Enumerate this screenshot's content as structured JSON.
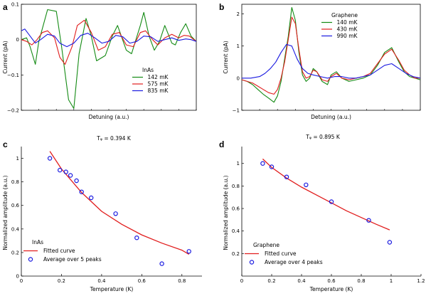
{
  "panel_labels": [
    "a",
    "b",
    "c",
    "d"
  ],
  "chart_data": [
    {
      "type": "line",
      "panel": "a",
      "xlabel": "Detuning (a.u.)",
      "ylabel": "Current (pA)",
      "legend_title": "InAs",
      "xlim": [
        0,
        1
      ],
      "ylim": [
        -0.2,
        0.1
      ],
      "yticks": [
        -0.2,
        -0.1,
        0,
        0.1
      ],
      "yticklabels": [
        "−0.2",
        "−0.1",
        "0",
        "0.1"
      ],
      "grid": false,
      "legend_position": "lower-right",
      "series": [
        {
          "name": "142 mK",
          "color": "#138a13",
          "x": [
            0,
            0.03,
            0.05,
            0.08,
            0.1,
            0.15,
            0.2,
            0.23,
            0.27,
            0.3,
            0.33,
            0.37,
            0.4,
            0.43,
            0.48,
            0.52,
            0.55,
            0.6,
            0.63,
            0.68,
            0.7,
            0.73,
            0.76,
            0.79,
            0.82,
            0.86,
            0.88,
            0.91,
            0.94,
            0.97,
            1.0
          ],
          "y": [
            0,
            0.005,
            -0.02,
            -0.07,
            -0.005,
            0.085,
            0.08,
            -0.02,
            -0.17,
            -0.195,
            -0.04,
            0.06,
            0.01,
            -0.06,
            -0.045,
            0.01,
            0.04,
            -0.03,
            -0.04,
            0.04,
            0.077,
            0.01,
            -0.03,
            -0.005,
            0.04,
            -0.01,
            -0.015,
            0.02,
            0.045,
            0.01,
            -0.005
          ]
        },
        {
          "name": "575 mK",
          "color": "#e11d1d",
          "x": [
            0,
            0.03,
            0.06,
            0.09,
            0.12,
            0.15,
            0.19,
            0.22,
            0.25,
            0.29,
            0.32,
            0.36,
            0.4,
            0.44,
            0.48,
            0.52,
            0.56,
            0.6,
            0.64,
            0.68,
            0.71,
            0.75,
            0.78,
            0.82,
            0.86,
            0.9,
            0.93,
            0.96,
            1.0
          ],
          "y": [
            0,
            -0.005,
            -0.015,
            0,
            0.02,
            0.025,
            0.005,
            -0.05,
            -0.07,
            -0.02,
            0.04,
            0.055,
            0.02,
            -0.03,
            -0.02,
            0.015,
            0.02,
            -0.015,
            -0.02,
            0.02,
            0.025,
            0,
            -0.015,
            0.005,
            0.015,
            0.005,
            0.012,
            0.01,
            -0.005
          ]
        },
        {
          "name": "835 mK",
          "color": "#1a1ae0",
          "x": [
            0,
            0.02,
            0.05,
            0.08,
            0.11,
            0.15,
            0.19,
            0.22,
            0.26,
            0.3,
            0.34,
            0.38,
            0.42,
            0.46,
            0.5,
            0.54,
            0.58,
            0.62,
            0.66,
            0.7,
            0.74,
            0.78,
            0.82,
            0.86,
            0.9,
            0.94,
            0.97,
            1.0
          ],
          "y": [
            0.025,
            0.03,
            0.01,
            -0.01,
            0,
            0.015,
            0.01,
            -0.01,
            -0.02,
            -0.01,
            0.012,
            0.018,
            0.005,
            -0.01,
            -0.005,
            0.012,
            0.008,
            -0.01,
            -0.005,
            0.01,
            0.008,
            -0.005,
            0,
            0.005,
            -0.002,
            0.002,
            0,
            -0.005
          ]
        }
      ]
    },
    {
      "type": "line",
      "panel": "b",
      "xlabel": "Detuning (a.u.)",
      "ylabel": "Current (pA)",
      "legend_title": "Graphene",
      "xlim": [
        0,
        1
      ],
      "ylim": [
        -1,
        2.3
      ],
      "yticks": [
        -1,
        0,
        1,
        2
      ],
      "yticklabels": [
        "−1",
        "0",
        "1",
        "2"
      ],
      "grid": false,
      "legend_position": "upper-right",
      "series": [
        {
          "name": "140 mK",
          "color": "#138a13",
          "x": [
            0,
            0.03,
            0.06,
            0.09,
            0.12,
            0.15,
            0.18,
            0.2,
            0.22,
            0.24,
            0.26,
            0.28,
            0.3,
            0.32,
            0.34,
            0.36,
            0.38,
            0.4,
            0.42,
            0.45,
            0.48,
            0.5,
            0.53,
            0.56,
            0.6,
            0.64,
            0.68,
            0.72,
            0.76,
            0.8,
            0.84,
            0.88,
            0.91,
            0.94,
            0.97,
            1.0
          ],
          "y": [
            -0.05,
            -0.1,
            -0.2,
            -0.35,
            -0.5,
            -0.62,
            -0.75,
            -0.55,
            -0.1,
            0.6,
            1.3,
            2.2,
            1.8,
            0.8,
            0.1,
            -0.1,
            0.0,
            0.3,
            0.2,
            -0.1,
            -0.2,
            0.1,
            0.2,
            0.0,
            -0.1,
            -0.05,
            0.0,
            0.1,
            0.4,
            0.8,
            0.95,
            0.5,
            0.2,
            0.05,
            0.0,
            -0.05
          ]
        },
        {
          "name": "430 mK",
          "color": "#e11d1d",
          "x": [
            0,
            0.03,
            0.06,
            0.09,
            0.12,
            0.15,
            0.18,
            0.2,
            0.22,
            0.24,
            0.26,
            0.28,
            0.3,
            0.32,
            0.34,
            0.36,
            0.38,
            0.4,
            0.42,
            0.45,
            0.48,
            0.5,
            0.53,
            0.56,
            0.6,
            0.64,
            0.68,
            0.72,
            0.76,
            0.8,
            0.84,
            0.88,
            0.91,
            0.94,
            0.97,
            1.0
          ],
          "y": [
            -0.05,
            -0.1,
            -0.15,
            -0.25,
            -0.35,
            -0.45,
            -0.5,
            -0.35,
            0.0,
            0.5,
            1.2,
            1.9,
            1.7,
            0.9,
            0.2,
            0.0,
            0.05,
            0.25,
            0.2,
            -0.05,
            -0.1,
            0.05,
            0.15,
            0.0,
            -0.05,
            0.0,
            0.05,
            0.15,
            0.45,
            0.75,
            0.9,
            0.55,
            0.25,
            0.1,
            0.0,
            0.0
          ]
        },
        {
          "name": "990 mK",
          "color": "#1a1ae0",
          "x": [
            0,
            0.05,
            0.1,
            0.13,
            0.16,
            0.19,
            0.22,
            0.25,
            0.28,
            0.31,
            0.34,
            0.37,
            0.4,
            0.44,
            0.48,
            0.52,
            0.56,
            0.6,
            0.64,
            0.68,
            0.72,
            0.76,
            0.8,
            0.84,
            0.88,
            0.92,
            0.96,
            1.0
          ],
          "y": [
            0.0,
            0.0,
            0.05,
            0.15,
            0.3,
            0.5,
            0.8,
            1.05,
            1.0,
            0.6,
            0.3,
            0.15,
            0.1,
            0.05,
            0.0,
            0.05,
            0.05,
            0.0,
            0.0,
            0.05,
            0.1,
            0.25,
            0.4,
            0.45,
            0.3,
            0.15,
            0.05,
            0.0
          ]
        }
      ]
    },
    {
      "type": "scatter",
      "panel": "c",
      "title": "Tᵩ = 0.394 K",
      "xlabel": "Temperature (K)",
      "ylabel": "Normalized amplitude (a.u.)",
      "legend_title": "InAs",
      "xlim": [
        0,
        0.9
      ],
      "ylim": [
        0,
        1.1
      ],
      "xticks": [
        0,
        0.2,
        0.4,
        0.6,
        0.8
      ],
      "xticklabels": [
        "0",
        "0.2",
        "0.4",
        "0.6",
        "0.8"
      ],
      "yticks": [
        0,
        0.2,
        0.4,
        0.6,
        0.8,
        1
      ],
      "yticklabels": [
        "0",
        "0.2",
        "0.4",
        "0.6",
        "0.8",
        "1"
      ],
      "grid": false,
      "legend_position": "lower-left",
      "points": {
        "name": "Average over 5 peaks",
        "color": "#1a1ae0",
        "x": [
          0.142,
          0.192,
          0.222,
          0.245,
          0.275,
          0.3,
          0.348,
          0.47,
          0.575,
          0.7,
          0.835
        ],
        "y": [
          1.0,
          0.9,
          0.885,
          0.855,
          0.81,
          0.715,
          0.665,
          0.53,
          0.325,
          0.105,
          0.21
        ]
      },
      "fit": {
        "name": "Fitted curve",
        "color": "#e11d1d",
        "x": [
          0.142,
          0.2,
          0.3,
          0.4,
          0.5,
          0.6,
          0.7,
          0.8,
          0.835
        ],
        "y": [
          1.06,
          0.91,
          0.71,
          0.55,
          0.44,
          0.35,
          0.28,
          0.22,
          0.185
        ]
      }
    },
    {
      "type": "scatter",
      "panel": "d",
      "title": "Tᵩ = 0.895 K",
      "xlabel": "Temperature (K)",
      "ylabel": "Normalized amplitude (a.u.)",
      "legend_title": "Graphene",
      "xlim": [
        0,
        1.2
      ],
      "ylim": [
        0,
        1.15
      ],
      "xticks": [
        0,
        0.2,
        0.4,
        0.6,
        0.8,
        1,
        1.2
      ],
      "xticklabels": [
        "0",
        "0.2",
        "0.4",
        "0.6",
        "0.8",
        "1",
        "1.2"
      ],
      "yticks": [
        0.2,
        0.4,
        0.6,
        0.8,
        1
      ],
      "yticklabels": [
        "0.2",
        "0.4",
        "0.6",
        "0.8",
        "1"
      ],
      "grid": false,
      "legend_position": "lower-left",
      "points": {
        "name": "Average over 4 peaks",
        "color": "#1a1ae0",
        "x": [
          0.14,
          0.2,
          0.3,
          0.43,
          0.6,
          0.85,
          0.99
        ],
        "y": [
          1.0,
          0.97,
          0.88,
          0.81,
          0.66,
          0.495,
          0.3
        ]
      },
      "fit": {
        "name": "Fitted curve",
        "color": "#e11d1d",
        "x": [
          0.14,
          0.2,
          0.3,
          0.4,
          0.5,
          0.6,
          0.7,
          0.8,
          0.9,
          0.99
        ],
        "y": [
          1.04,
          0.965,
          0.87,
          0.79,
          0.72,
          0.65,
          0.58,
          0.52,
          0.46,
          0.41
        ]
      }
    }
  ]
}
